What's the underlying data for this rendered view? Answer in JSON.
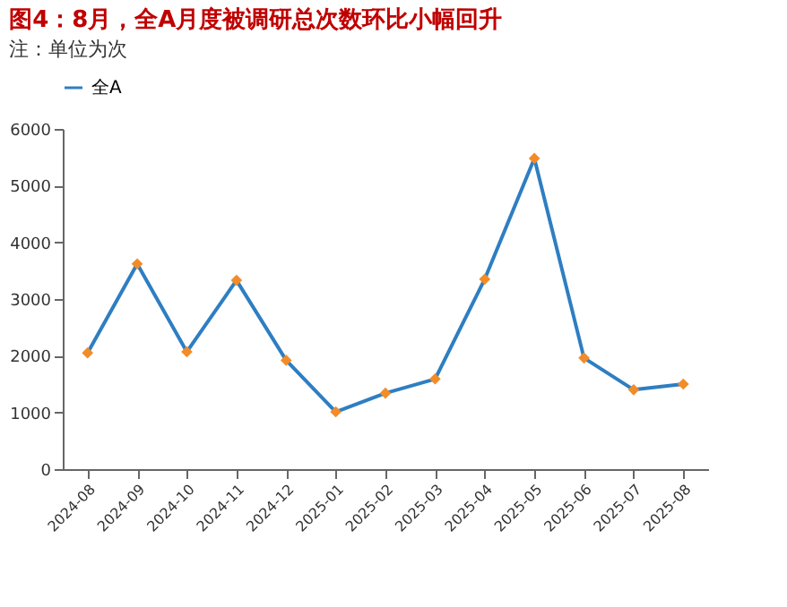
{
  "chart_data": {
    "type": "line",
    "title": "图4：8月，全A月度被调研总次数环比小幅回升",
    "categories": [
      "2024-08",
      "2024-09",
      "2024-10",
      "2024-11",
      "2024-12",
      "2025-01",
      "2025-02",
      "2025-03",
      "2025-04",
      "2025-05",
      "2025-06",
      "2025-07",
      "2025-08"
    ],
    "series": [
      {
        "name": "全A",
        "color": "#2e7ec2",
        "colors": [
          "#f28c28",
          "#f28c28",
          "#f28c28",
          "#f28c28",
          "#f28c28",
          "#f28c28",
          "#f28c28",
          "#f28c28",
          "#f28c28",
          "#f28c28",
          "#f28c28",
          "#f28c28",
          "#f28c28"
        ],
        "values": [
          2050,
          3620,
          2070,
          3330,
          1920,
          1010,
          1340,
          1590,
          3350,
          5480,
          1960,
          1400,
          1500
        ]
      }
    ],
    "ylim": [
      0,
      6000
    ],
    "yticks": [
      0,
      1000,
      2000,
      3000,
      4000,
      5000,
      6000
    ],
    "grid": false,
    "legend": "top",
    "marker": "diamond",
    "line_style": "solid",
    "annotations": [
      "注：单位为次"
    ]
  }
}
